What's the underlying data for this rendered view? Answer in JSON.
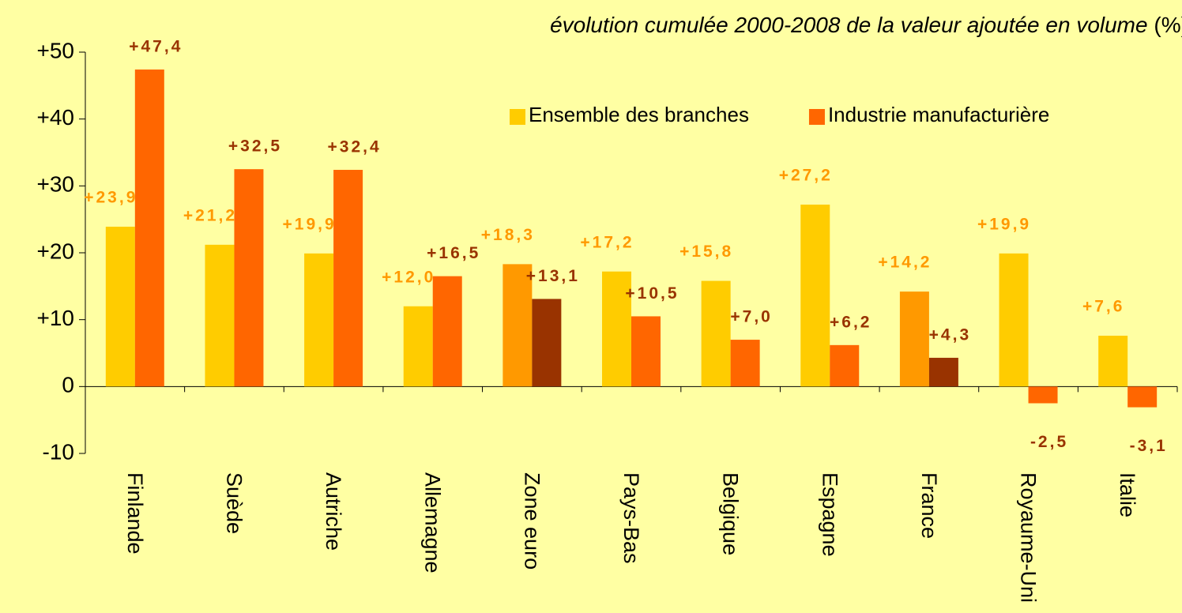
{
  "chart_data": {
    "type": "bar",
    "title": "évolution cumulée 2000-2008 de la valeur ajoutée en volume",
    "unit": "(%)",
    "categories": [
      "Finlande",
      "Suède",
      "Autriche",
      "Allemagne",
      "Zone euro",
      "Pays-Bas",
      "Belgique",
      "Espagne",
      "France",
      "Royaume-Uni",
      "Italie"
    ],
    "series": [
      {
        "name": "Ensemble des branches",
        "color": "#FFCC00",
        "colors": [
          "#FFCC00",
          "#FFCC00",
          "#FFCC00",
          "#FFCC00",
          "#FF9900",
          "#FFCC00",
          "#FFCC00",
          "#FFCC00",
          "#FF9900",
          "#FFCC00",
          "#FFCC00"
        ],
        "label_color": "#FF9900",
        "values": [
          23.9,
          21.2,
          19.9,
          12.0,
          18.3,
          17.2,
          15.8,
          27.2,
          14.2,
          19.9,
          7.6
        ],
        "value_labels": [
          "+23,9",
          "+21,2",
          "+19,9",
          "+12,0",
          "+18,3",
          "+17,2",
          "+15,8",
          "+27,2",
          "+14,2",
          "+19,9",
          "+7,6"
        ]
      },
      {
        "name": "Industrie manufacturière",
        "color": "#FF6600",
        "colors": [
          "#FF6600",
          "#FF6600",
          "#FF6600",
          "#FF6600",
          "#993300",
          "#FF6600",
          "#FF6600",
          "#FF6600",
          "#993300",
          "#FF6600",
          "#FF6600"
        ],
        "label_color": "#993300",
        "values": [
          47.4,
          32.5,
          32.4,
          16.5,
          13.1,
          10.5,
          7.0,
          6.2,
          4.3,
          -2.5,
          -3.1
        ],
        "value_labels": [
          "+47,4",
          "+32,5",
          "+32,4",
          "+16,5",
          "+13,1",
          "+10,5",
          "+7,0",
          "+6,2",
          "+4,3",
          "-2,5",
          "-3,1"
        ]
      }
    ],
    "ylim": [
      -10,
      50
    ],
    "yticks": [
      {
        "value": -10,
        "label": "-10"
      },
      0,
      {
        "value": 10,
        "label": "+10"
      },
      {
        "value": 20,
        "label": "+20"
      },
      {
        "value": 30,
        "label": "+30"
      },
      {
        "value": 40,
        "label": "+40"
      },
      {
        "value": 50,
        "label": "+50"
      }
    ],
    "grid": false,
    "legend": "top-right"
  }
}
